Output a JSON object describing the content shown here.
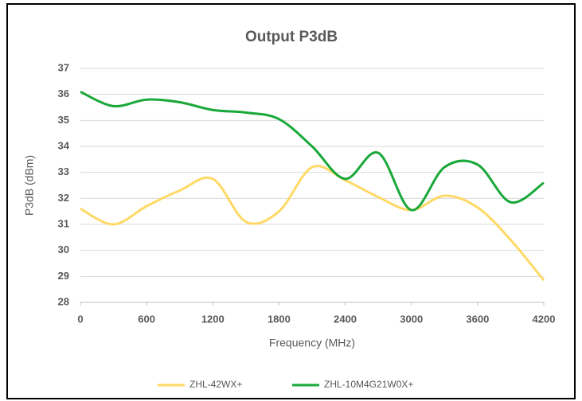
{
  "chart_data": {
    "type": "line",
    "title": "Output P3dB",
    "x_label": "Frequency (MHz)",
    "y_label": "P3dB (dBm)",
    "xlim": [
      0,
      4200
    ],
    "xticks": [
      0,
      600,
      1200,
      1800,
      2400,
      3000,
      3600,
      4200
    ],
    "ylim": [
      28,
      37
    ],
    "yticks": [
      28,
      29,
      30,
      31,
      32,
      33,
      34,
      35,
      36,
      37
    ],
    "grid": true,
    "legend": "bottom",
    "series": [
      {
        "name": "ZHL-42WX+",
        "color": "#ffd966",
        "x": [
          0,
          300,
          600,
          900,
          1200,
          1500,
          1800,
          2100,
          2400,
          2700,
          3000,
          3300,
          3600,
          3900,
          4200
        ],
        "values": [
          31.6,
          31.0,
          31.7,
          32.3,
          32.75,
          31.1,
          31.5,
          33.2,
          32.7,
          32.05,
          31.55,
          32.1,
          31.65,
          30.4,
          28.85
        ]
      },
      {
        "name": "ZHL-10M4G21W0X+",
        "color": "#1aa83a",
        "x": [
          0,
          300,
          600,
          900,
          1200,
          1500,
          1800,
          2100,
          2400,
          2700,
          3000,
          3300,
          3600,
          3900,
          4200
        ],
        "values": [
          36.1,
          35.55,
          35.8,
          35.7,
          35.4,
          35.3,
          35.05,
          34.0,
          32.75,
          33.75,
          31.55,
          33.2,
          33.3,
          31.85,
          32.6
        ]
      }
    ]
  }
}
